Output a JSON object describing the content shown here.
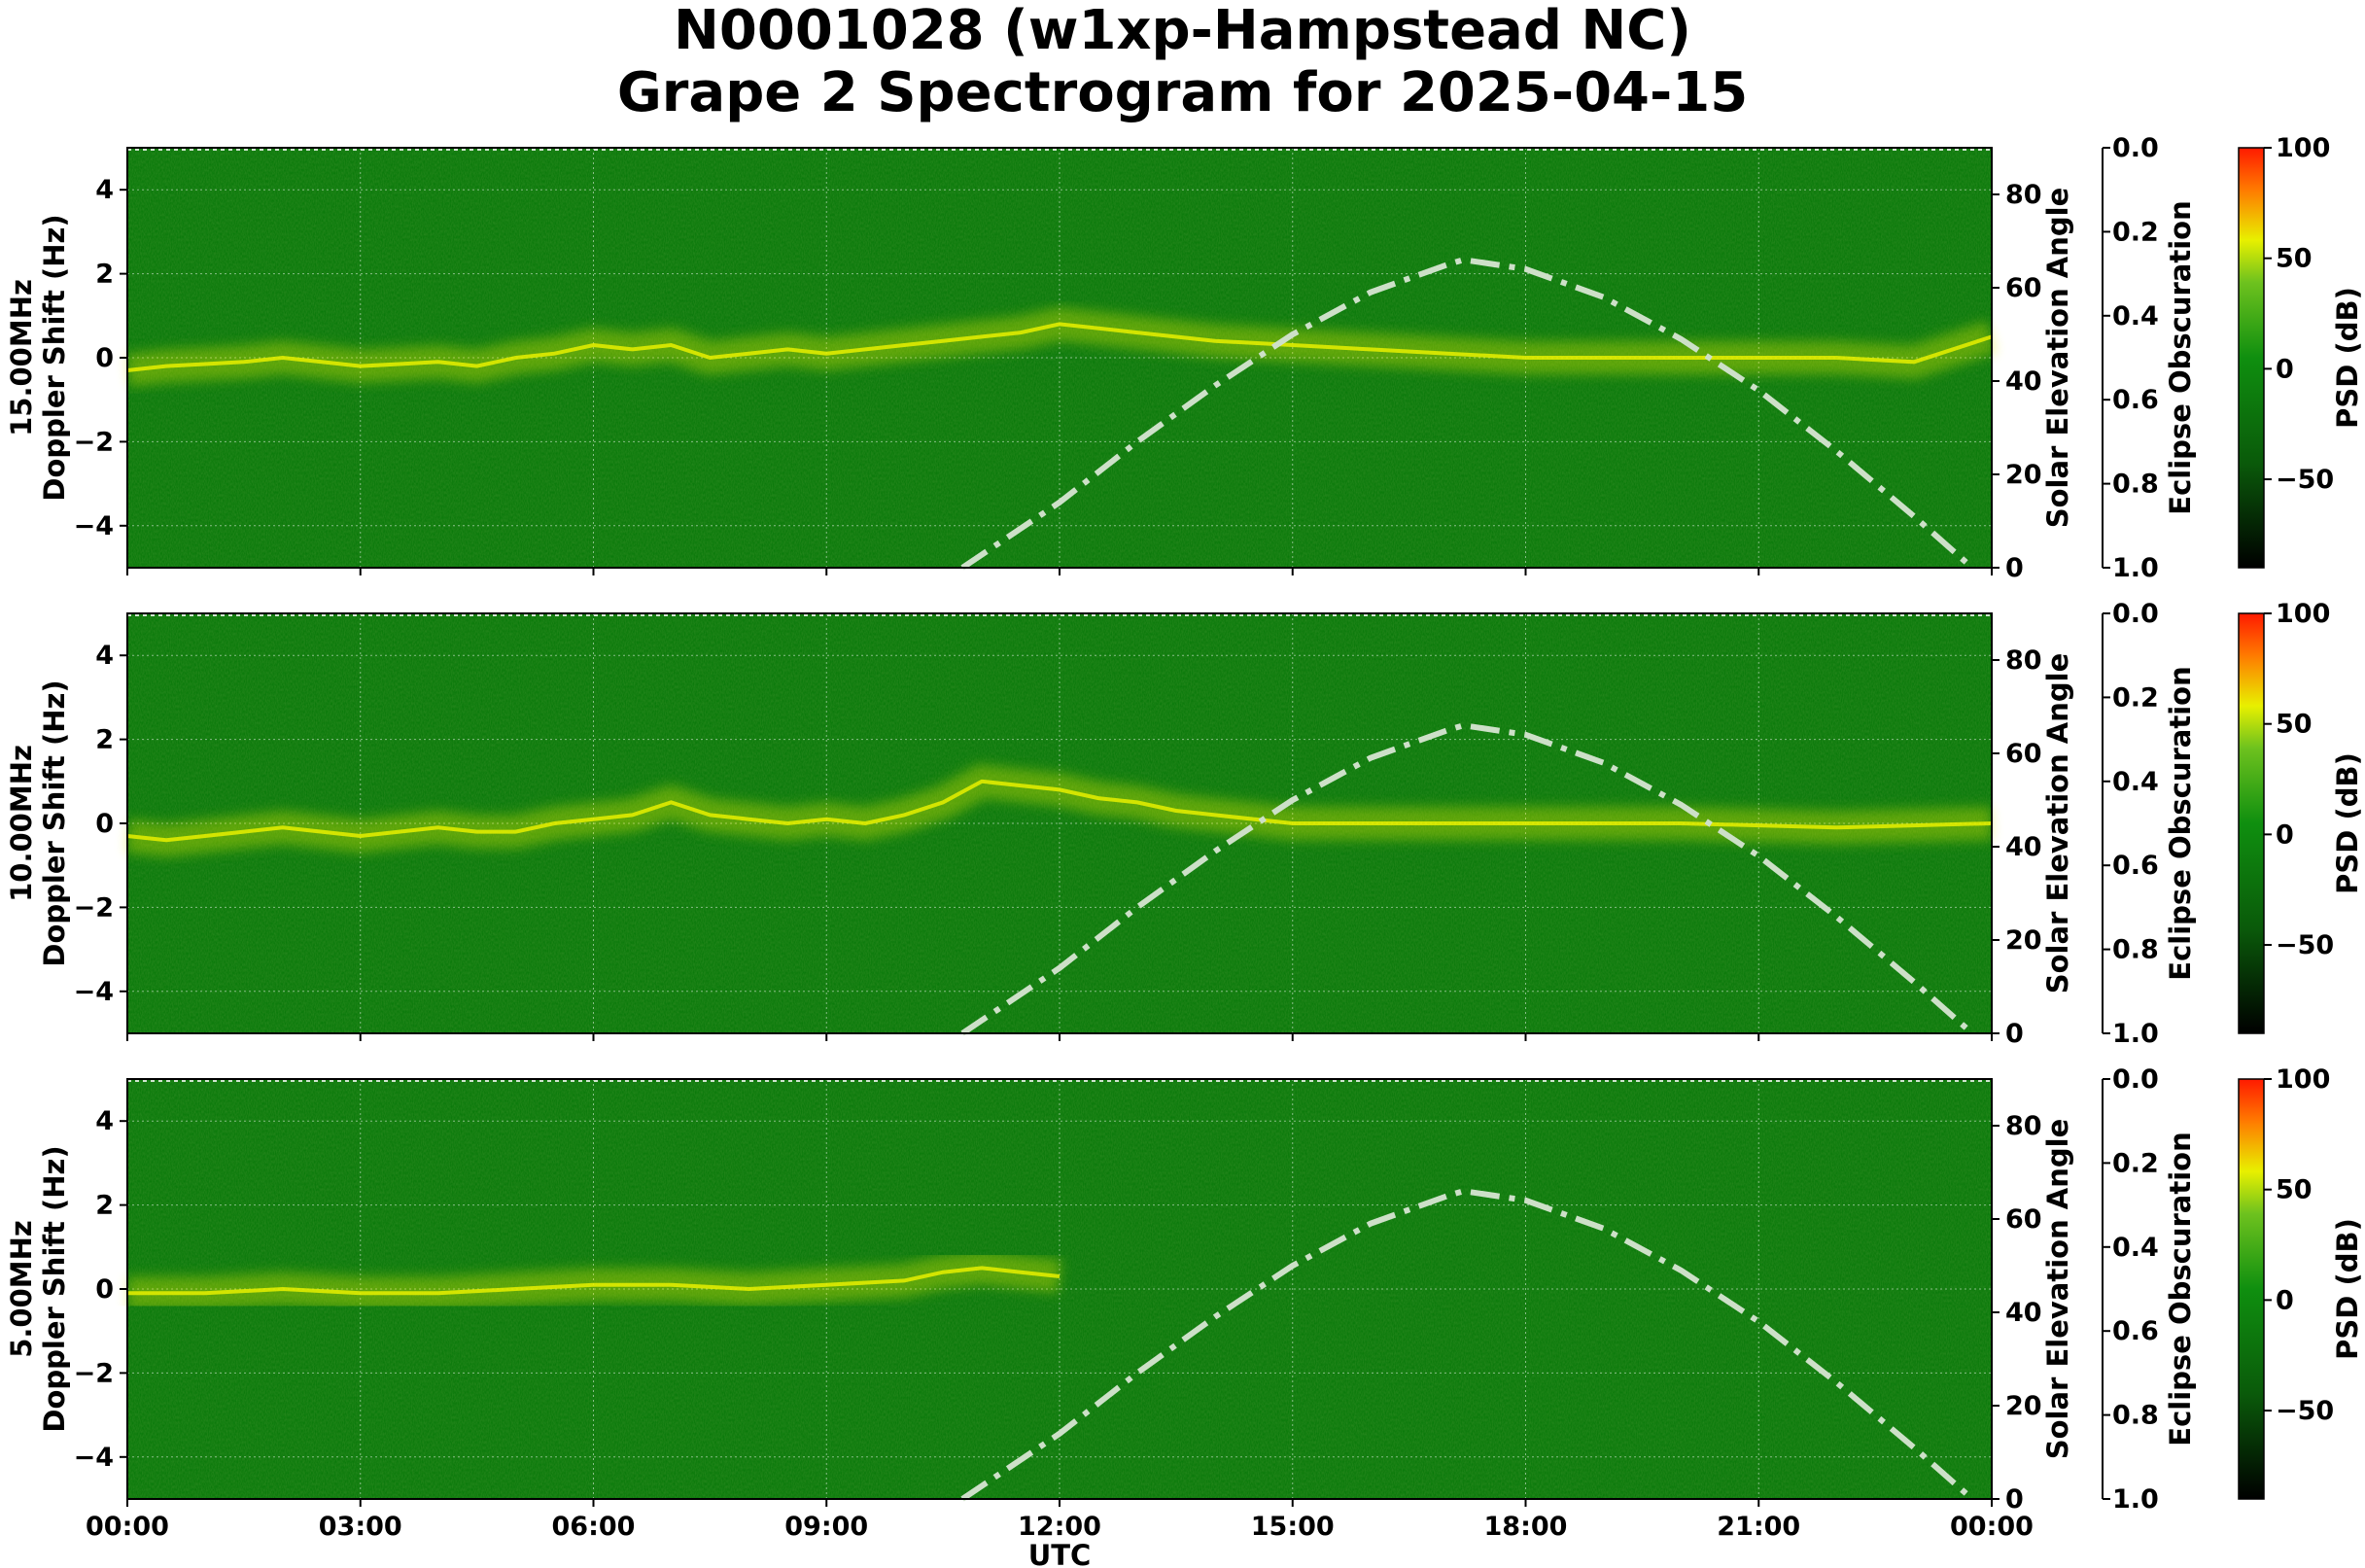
{
  "title_line1": "N0001028 (w1xp-Hampstead NC)",
  "title_line2": "Grape 2 Spectrogram for 2025-04-15",
  "colors": {
    "background_green": "#0b7a0b",
    "signal_yellow": "#e8f000",
    "solar_curve": "#cde0c8",
    "grid": "#b9d9b9"
  },
  "chart_data": [
    {
      "type": "heatmap",
      "band_label": "15.00MHz",
      "ylabel": "Doppler Shift (Hz)",
      "ylim": [
        -5,
        5
      ],
      "yticks": [
        "4",
        "2",
        "0",
        "−2",
        "−4"
      ],
      "right_axis_label": "Solar Elevation Angle",
      "right_ylim": [
        0,
        90
      ],
      "right_yticks": [
        "0",
        "20",
        "40",
        "60",
        "80"
      ],
      "eclipse_label": "Eclipse Obscuration",
      "eclipse_ticks": [
        "0.0",
        "0.2",
        "0.4",
        "0.6",
        "0.8",
        "1.0"
      ],
      "colorbar_label": "PSD (dB)",
      "colorbar_ticks": [
        "100",
        "50",
        "0",
        "−50"
      ],
      "solar_elevation": {
        "x_hours": [
          10.75,
          12,
          13,
          14,
          15,
          16,
          17,
          17.2,
          18,
          19,
          20,
          21,
          22,
          23,
          23.75
        ],
        "deg": [
          0,
          14,
          27,
          39,
          50,
          59,
          65,
          66,
          64,
          58,
          49,
          38,
          25,
          11,
          0
        ]
      },
      "signal_trace": {
        "x_hours": [
          0,
          0.5,
          1,
          1.5,
          2,
          2.5,
          3,
          3.5,
          4,
          4.5,
          5,
          5.5,
          6,
          6.5,
          7,
          7.5,
          8,
          8.5,
          9,
          9.5,
          10,
          10.5,
          11,
          11.5,
          12,
          13,
          14,
          15,
          16,
          17,
          18,
          19,
          20,
          21,
          22,
          23,
          24
        ],
        "hz": [
          -0.3,
          -0.2,
          -0.15,
          -0.1,
          0.0,
          -0.1,
          -0.2,
          -0.15,
          -0.1,
          -0.2,
          0.0,
          0.1,
          0.3,
          0.2,
          0.3,
          0.0,
          0.1,
          0.2,
          0.1,
          0.2,
          0.3,
          0.4,
          0.5,
          0.6,
          0.8,
          0.6,
          0.4,
          0.3,
          0.2,
          0.1,
          0.0,
          0.0,
          0.0,
          0.0,
          0.0,
          -0.1,
          0.5
        ]
      }
    },
    {
      "type": "heatmap",
      "band_label": "10.00MHz",
      "ylabel": "Doppler Shift (Hz)",
      "ylim": [
        -5,
        5
      ],
      "yticks": [
        "4",
        "2",
        "0",
        "−2",
        "−4"
      ],
      "right_axis_label": "Solar Elevation Angle",
      "right_ylim": [
        0,
        90
      ],
      "right_yticks": [
        "0",
        "20",
        "40",
        "60",
        "80"
      ],
      "eclipse_label": "Eclipse Obscuration",
      "eclipse_ticks": [
        "0.0",
        "0.2",
        "0.4",
        "0.6",
        "0.8",
        "1.0"
      ],
      "colorbar_label": "PSD (dB)",
      "colorbar_ticks": [
        "100",
        "50",
        "0",
        "−50"
      ],
      "solar_elevation": {
        "x_hours": [
          10.75,
          12,
          13,
          14,
          15,
          16,
          17,
          17.2,
          18,
          19,
          20,
          21,
          22,
          23,
          23.75
        ],
        "deg": [
          0,
          14,
          27,
          39,
          50,
          59,
          65,
          66,
          64,
          58,
          49,
          38,
          25,
          11,
          0
        ]
      },
      "signal_trace": {
        "x_hours": [
          0,
          0.5,
          1,
          1.5,
          2,
          2.5,
          3,
          3.5,
          4,
          4.5,
          5,
          5.5,
          6,
          6.5,
          7,
          7.5,
          8,
          8.5,
          9,
          9.5,
          10,
          10.5,
          11,
          11.5,
          12,
          12.5,
          13,
          13.5,
          14,
          15,
          16,
          18,
          20,
          22,
          24
        ],
        "hz": [
          -0.3,
          -0.4,
          -0.3,
          -0.2,
          -0.1,
          -0.2,
          -0.3,
          -0.2,
          -0.1,
          -0.2,
          -0.2,
          0.0,
          0.1,
          0.2,
          0.5,
          0.2,
          0.1,
          0.0,
          0.1,
          0.0,
          0.2,
          0.5,
          1.0,
          0.9,
          0.8,
          0.6,
          0.5,
          0.3,
          0.2,
          0.0,
          0.0,
          0.0,
          0.0,
          -0.1,
          0.0
        ]
      }
    },
    {
      "type": "heatmap",
      "band_label": "5.00MHz",
      "ylabel": "Doppler Shift (Hz)",
      "ylim": [
        -5,
        5
      ],
      "yticks": [
        "4",
        "2",
        "0",
        "−2",
        "−4"
      ],
      "right_axis_label": "Solar Elevation Angle",
      "right_ylim": [
        0,
        90
      ],
      "right_yticks": [
        "0",
        "20",
        "40",
        "60",
        "80"
      ],
      "eclipse_label": "Eclipse Obscuration",
      "eclipse_ticks": [
        "0.0",
        "0.2",
        "0.4",
        "0.6",
        "0.8",
        "1.0"
      ],
      "colorbar_label": "PSD (dB)",
      "colorbar_ticks": [
        "100",
        "50",
        "0",
        "−50"
      ],
      "solar_elevation": {
        "x_hours": [
          10.75,
          12,
          13,
          14,
          15,
          16,
          17,
          17.2,
          18,
          19,
          20,
          21,
          22,
          23,
          23.75
        ],
        "deg": [
          0,
          14,
          27,
          39,
          50,
          59,
          65,
          66,
          64,
          58,
          49,
          38,
          25,
          11,
          0
        ]
      },
      "signal_trace": {
        "x_hours": [
          0,
          1,
          2,
          3,
          4,
          5,
          6,
          7,
          8,
          9,
          10,
          10.5,
          11,
          11.5,
          12
        ],
        "hz": [
          -0.1,
          -0.1,
          0.0,
          -0.1,
          -0.1,
          0.0,
          0.1,
          0.1,
          0.0,
          0.1,
          0.2,
          0.4,
          0.5,
          0.4,
          0.3
        ]
      }
    }
  ],
  "x_axis": {
    "label": "UTC",
    "ticks": [
      "00:00",
      "03:00",
      "06:00",
      "09:00",
      "12:00",
      "15:00",
      "18:00",
      "21:00",
      "00:00"
    ],
    "range_hours": [
      0,
      24
    ]
  }
}
